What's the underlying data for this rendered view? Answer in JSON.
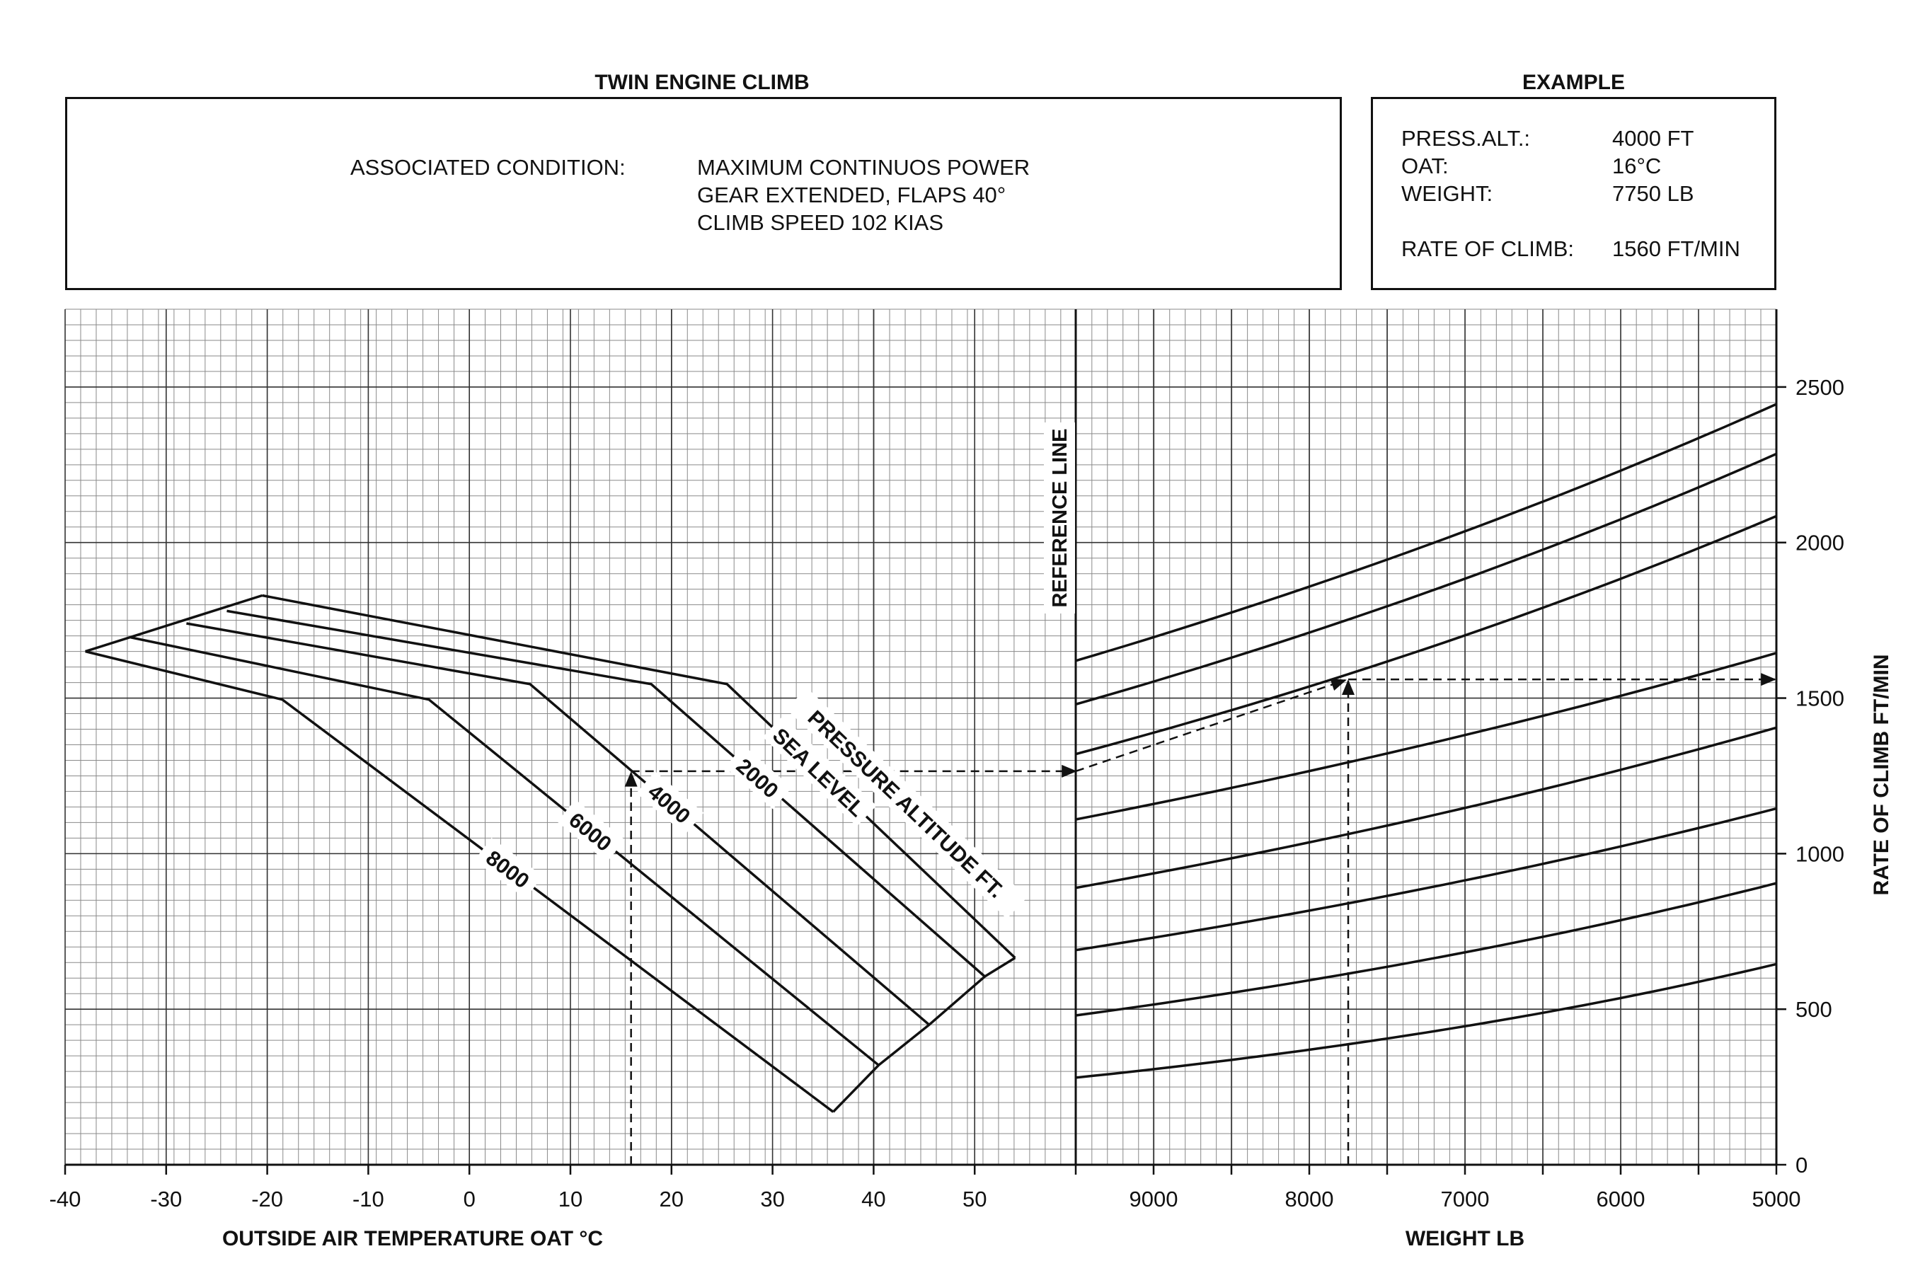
{
  "header": {
    "title": "TWIN ENGINE CLIMB",
    "example_title": "EXAMPLE"
  },
  "conditions": {
    "label": "ASSOCIATED CONDITION:",
    "lines": [
      "MAXIMUM CONTINUOS POWER",
      "GEAR EXTENDED, FLAPS 40°",
      "CLIMB SPEED 102 KIAS"
    ]
  },
  "example": {
    "rows": [
      {
        "label": "PRESS.ALT.:",
        "value": "4000 FT"
      },
      {
        "label": "OAT:",
        "value": "16°C"
      },
      {
        "label": "WEIGHT:",
        "value": "7750 LB"
      },
      {
        "label": "RATE OF CLIMB:",
        "value": "1560 FT/MIN"
      }
    ]
  },
  "chart_data": {
    "type": "line",
    "title": "TWIN ENGINE CLIMB",
    "left_panel": {
      "xlabel": "OUTSIDE AIR TEMPERATURE OAT °C",
      "xlim": [
        -40,
        60
      ],
      "x_ticks": [
        -40,
        -30,
        -20,
        -10,
        0,
        10,
        20,
        30,
        40,
        50
      ],
      "series_title": "PRESSURE ALTITUDE FT.",
      "series": [
        {
          "name": "SEA LEVEL",
          "points": [
            [
              -20.5,
              1830
            ],
            [
              25.5,
              1545
            ],
            [
              54,
              665
            ]
          ]
        },
        {
          "name": "2000",
          "points": [
            [
              -24,
              1780
            ],
            [
              18,
              1545
            ],
            [
              51,
              605
            ]
          ]
        },
        {
          "name": "4000",
          "points": [
            [
              -28,
              1740
            ],
            [
              6,
              1545
            ],
            [
              45.5,
              450
            ]
          ]
        },
        {
          "name": "6000",
          "points": [
            [
              -33.5,
              1695
            ],
            [
              -4,
              1495
            ],
            [
              40.5,
              320
            ]
          ]
        },
        {
          "name": "8000",
          "points": [
            [
              -38,
              1650
            ],
            [
              -18.5,
              1495
            ],
            [
              36,
              170
            ]
          ]
        }
      ],
      "outer_boundary": [
        [
          -38,
          1650
        ],
        [
          -20.5,
          1830
        ]
      ],
      "bottom_boundary": [
        [
          36,
          170
        ],
        [
          40.5,
          320
        ],
        [
          45.5,
          450
        ],
        [
          51,
          605
        ],
        [
          54,
          665
        ]
      ]
    },
    "reference_line": {
      "label": "REFERENCE LINE",
      "weight": 9500
    },
    "right_panel": {
      "xlabel": "WEIGHT LB",
      "xlim": [
        9500,
        5000
      ],
      "x_ticks": [
        9000,
        8000,
        7000,
        6000,
        5000
      ],
      "guide_lines": [
        {
          "start": 1620,
          "end": 2445
        },
        {
          "start": 1480,
          "end": 2285
        },
        {
          "start": 1320,
          "end": 2085
        },
        {
          "start": 1110,
          "end": 1645
        },
        {
          "start": 890,
          "end": 1405
        },
        {
          "start": 690,
          "end": 1145
        },
        {
          "start": 480,
          "end": 905
        },
        {
          "start": 280,
          "end": 645
        }
      ]
    },
    "ylabel": "RATE OF CLIMB FT/MIN",
    "ylim": [
      0,
      2750
    ],
    "y_ticks": [
      0,
      500,
      1000,
      1500,
      2000,
      2500
    ],
    "grid": true,
    "example_path": {
      "oat": 16,
      "altitude": 4000,
      "roc_at_reference": 1265,
      "weight": 7750,
      "rate_of_climb": 1560
    }
  }
}
